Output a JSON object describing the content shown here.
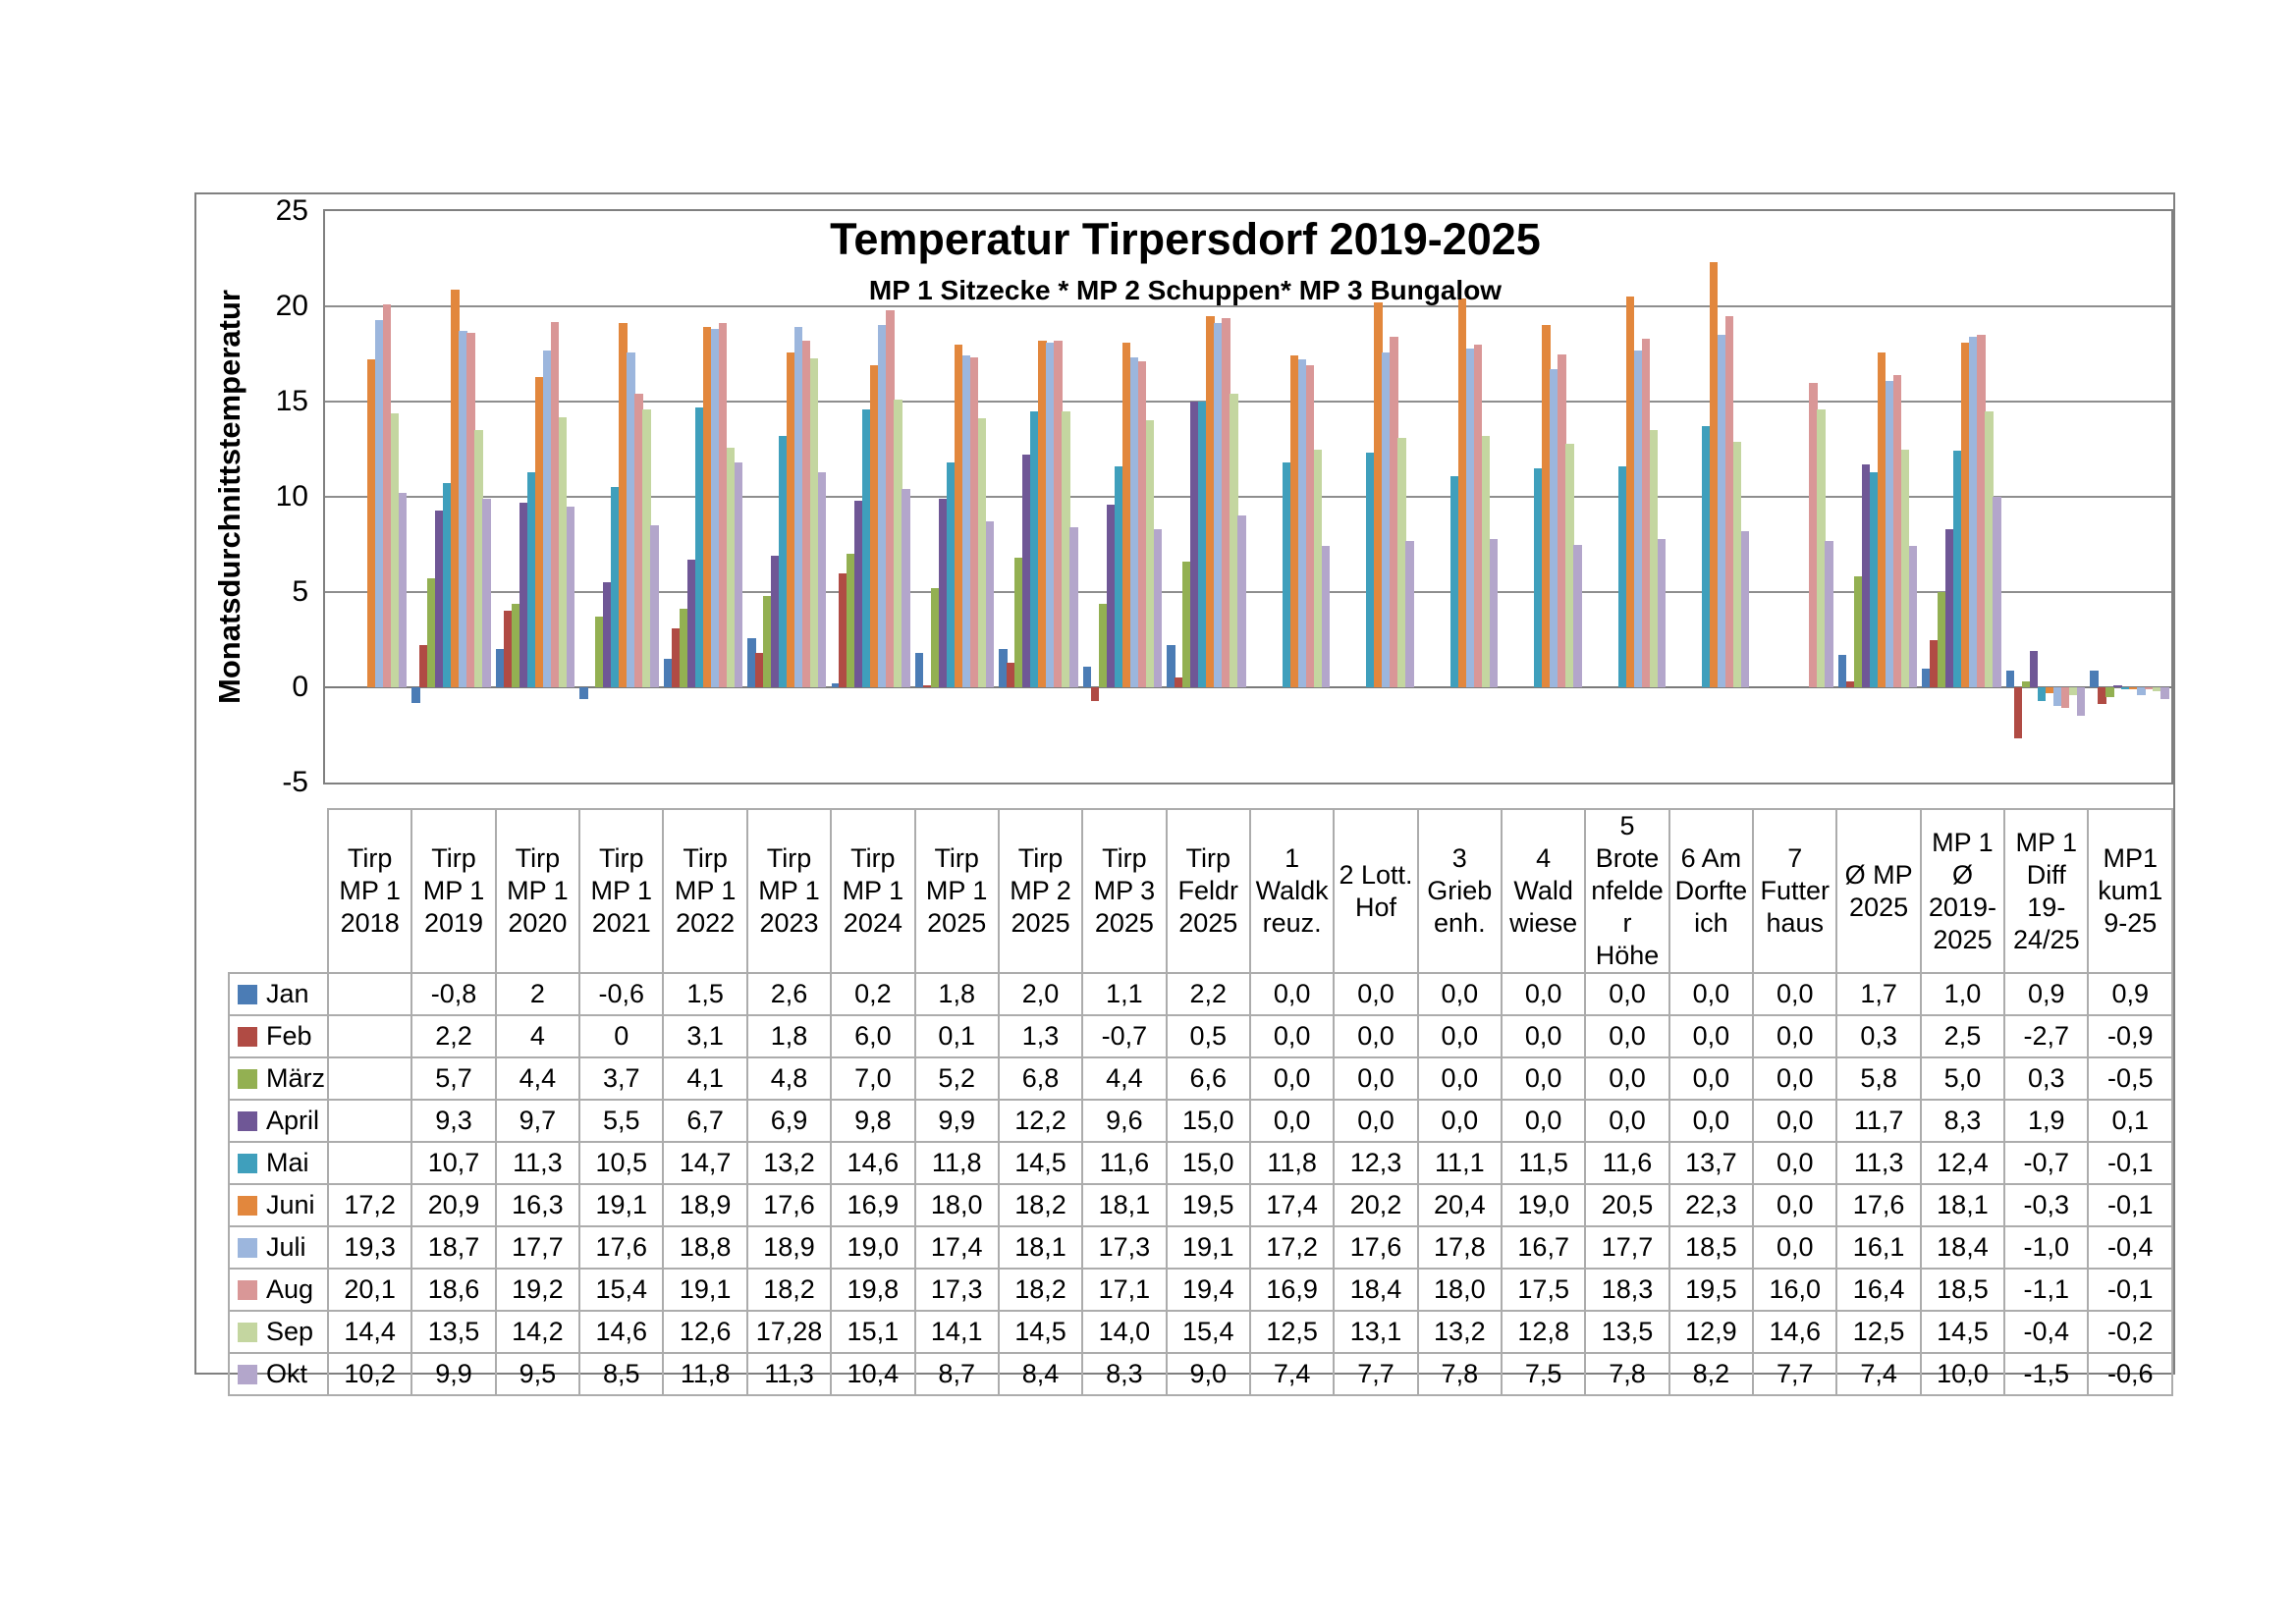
{
  "chart_data": {
    "type": "bar",
    "title": "Temperatur Tirpersdorf 2019-2025",
    "subtitle": "MP 1 Sitzecke * MP 2 Schuppen* MP 3 Bungalow",
    "ylabel": "Monatsdurchnittstemperatur",
    "ylim": [
      -5,
      25
    ],
    "y_ticks": [
      25,
      20,
      15,
      10,
      5,
      0,
      -5
    ],
    "grid": "horizontal",
    "legend_position": "data-table-left",
    "categories": [
      "Tirp MP 1 2018",
      "Tirp MP 1 2019",
      "Tirp MP 1 2020",
      "Tirp MP 1 2021",
      "Tirp MP 1 2022",
      "Tirp MP 1 2023",
      "Tirp MP 1 2024",
      "Tirp MP 1 2025",
      "Tirp MP 2 2025",
      "Tirp MP 3 2025",
      "Tirp Feldr 2025",
      "1 Waldkreuz.",
      "2 Lott. Hof",
      "3 Griebenh.",
      "4 Waldwiese",
      "5 Brotenfelder Höhe",
      "6 Am Dorfteich",
      "7 Futterhaus",
      "Ø MP 2025",
      "MP 1 Ø 2019-2025",
      "MP 1 Diff 19-24/25",
      "MP1 kum19-25"
    ],
    "series": [
      {
        "name": "Jan",
        "color": "#4b7cb5",
        "values": [
          null,
          -0.8,
          2,
          -0.6,
          1.5,
          2.6,
          0.2,
          1.8,
          2.0,
          1.1,
          2.2,
          0,
          0,
          0,
          0,
          0,
          0,
          0,
          1.7,
          1.0,
          0.9,
          0.9
        ],
        "display": [
          "",
          "-0,8",
          "2",
          "-0,6",
          "1,5",
          "2,6",
          "0,2",
          "1,8",
          "2,0",
          "1,1",
          "2,2",
          "0,0",
          "0,0",
          "0,0",
          "0,0",
          "0,0",
          "0,0",
          "0,0",
          "1,7",
          "1,0",
          "0,9",
          "0,9"
        ]
      },
      {
        "name": "Feb",
        "color": "#b04b44",
        "values": [
          null,
          2.2,
          4,
          0,
          3.1,
          1.8,
          6.0,
          0.1,
          1.3,
          -0.7,
          0.5,
          0,
          0,
          0,
          0,
          0,
          0,
          0,
          0.3,
          2.5,
          -2.7,
          -0.9
        ],
        "display": [
          "",
          "2,2",
          "4",
          "0",
          "3,1",
          "1,8",
          "6,0",
          "0,1",
          "1,3",
          "-0,7",
          "0,5",
          "0,0",
          "0,0",
          "0,0",
          "0,0",
          "0,0",
          "0,0",
          "0,0",
          "0,3",
          "2,5",
          "-2,7",
          "-0,9"
        ]
      },
      {
        "name": "März",
        "color": "#93b052",
        "values": [
          null,
          5.7,
          4.4,
          3.7,
          4.1,
          4.8,
          7.0,
          5.2,
          6.8,
          4.4,
          6.6,
          0,
          0,
          0,
          0,
          0,
          0,
          0,
          5.8,
          5.0,
          0.3,
          -0.5
        ],
        "display": [
          "",
          "5,7",
          "4,4",
          "3,7",
          "4,1",
          "4,8",
          "7,0",
          "5,2",
          "6,8",
          "4,4",
          "6,6",
          "0,0",
          "0,0",
          "0,0",
          "0,0",
          "0,0",
          "0,0",
          "0,0",
          "5,8",
          "5,0",
          "0,3",
          "-0,5"
        ]
      },
      {
        "name": "April",
        "color": "#6f5796",
        "values": [
          null,
          9.3,
          9.7,
          5.5,
          6.7,
          6.9,
          9.8,
          9.9,
          12.2,
          9.6,
          15.0,
          0,
          0,
          0,
          0,
          0,
          0,
          0,
          11.7,
          8.3,
          1.9,
          0.1
        ],
        "display": [
          "",
          "9,3",
          "9,7",
          "5,5",
          "6,7",
          "6,9",
          "9,8",
          "9,9",
          "12,2",
          "9,6",
          "15,0",
          "0,0",
          "0,0",
          "0,0",
          "0,0",
          "0,0",
          "0,0",
          "0,0",
          "11,7",
          "8,3",
          "1,9",
          "0,1"
        ]
      },
      {
        "name": "Mai",
        "color": "#3f9fbc",
        "values": [
          null,
          10.7,
          11.3,
          10.5,
          14.7,
          13.2,
          14.6,
          11.8,
          14.5,
          11.6,
          15.0,
          11.8,
          12.3,
          11.1,
          11.5,
          11.6,
          13.7,
          0,
          11.3,
          12.4,
          -0.7,
          -0.1
        ],
        "display": [
          "",
          "10,7",
          "11,3",
          "10,5",
          "14,7",
          "13,2",
          "14,6",
          "11,8",
          "14,5",
          "11,6",
          "15,0",
          "11,8",
          "12,3",
          "11,1",
          "11,5",
          "11,6",
          "13,7",
          "0,0",
          "11,3",
          "12,4",
          "-0,7",
          "-0,1"
        ]
      },
      {
        "name": "Juni",
        "color": "#e2873d",
        "values": [
          17.2,
          20.9,
          16.3,
          19.1,
          18.9,
          17.6,
          16.9,
          18.0,
          18.2,
          18.1,
          19.5,
          17.4,
          20.2,
          20.4,
          19.0,
          20.5,
          22.3,
          0,
          17.6,
          18.1,
          -0.3,
          -0.1
        ],
        "display": [
          "17,2",
          "20,9",
          "16,3",
          "19,1",
          "18,9",
          "17,6",
          "16,9",
          "18,0",
          "18,2",
          "18,1",
          "19,5",
          "17,4",
          "20,2",
          "20,4",
          "19,0",
          "20,5",
          "22,3",
          "0,0",
          "17,6",
          "18,1",
          "-0,3",
          "-0,1"
        ]
      },
      {
        "name": "Juli",
        "color": "#9cb6dd",
        "values": [
          19.3,
          18.7,
          17.7,
          17.6,
          18.8,
          18.9,
          19.0,
          17.4,
          18.1,
          17.3,
          19.1,
          17.2,
          17.6,
          17.8,
          16.7,
          17.7,
          18.5,
          0,
          16.1,
          18.4,
          -1.0,
          -0.4
        ],
        "display": [
          "19,3",
          "18,7",
          "17,7",
          "17,6",
          "18,8",
          "18,9",
          "19,0",
          "17,4",
          "18,1",
          "17,3",
          "19,1",
          "17,2",
          "17,6",
          "17,8",
          "16,7",
          "17,7",
          "18,5",
          "0,0",
          "16,1",
          "18,4",
          "-1,0",
          "-0,4"
        ]
      },
      {
        "name": "Aug",
        "color": "#d99797",
        "values": [
          20.1,
          18.6,
          19.2,
          15.4,
          19.1,
          18.2,
          19.8,
          17.3,
          18.2,
          17.1,
          19.4,
          16.9,
          18.4,
          18.0,
          17.5,
          18.3,
          19.5,
          16.0,
          16.4,
          18.5,
          -1.1,
          -0.1
        ],
        "display": [
          "20,1",
          "18,6",
          "19,2",
          "15,4",
          "19,1",
          "18,2",
          "19,8",
          "17,3",
          "18,2",
          "17,1",
          "19,4",
          "16,9",
          "18,4",
          "18,0",
          "17,5",
          "18,3",
          "19,5",
          "16,0",
          "16,4",
          "18,5",
          "-1,1",
          "-0,1"
        ]
      },
      {
        "name": "Sep",
        "color": "#c4d6a0",
        "values": [
          14.4,
          13.5,
          14.2,
          14.6,
          12.6,
          17.28,
          15.1,
          14.1,
          14.5,
          14.0,
          15.4,
          12.5,
          13.1,
          13.2,
          12.8,
          13.5,
          12.9,
          14.6,
          12.5,
          14.5,
          -0.4,
          -0.2
        ],
        "display": [
          "14,4",
          "13,5",
          "14,2",
          "14,6",
          "12,6",
          "17,28",
          "15,1",
          "14,1",
          "14,5",
          "14,0",
          "15,4",
          "12,5",
          "13,1",
          "13,2",
          "12,8",
          "13,5",
          "12,9",
          "14,6",
          "12,5",
          "14,5",
          "-0,4",
          "-0,2"
        ]
      },
      {
        "name": "Okt",
        "color": "#b3a6cb",
        "values": [
          10.2,
          9.9,
          9.5,
          8.5,
          11.8,
          11.3,
          10.4,
          8.7,
          8.4,
          8.3,
          9.0,
          7.4,
          7.7,
          7.8,
          7.5,
          7.8,
          8.2,
          7.7,
          7.4,
          10.0,
          -1.5,
          -0.6
        ],
        "display": [
          "10,2",
          "9,9",
          "9,5",
          "8,5",
          "11,8",
          "11,3",
          "10,4",
          "8,7",
          "8,4",
          "8,3",
          "9,0",
          "7,4",
          "7,7",
          "7,8",
          "7,5",
          "7,8",
          "8,2",
          "7,7",
          "7,4",
          "10,0",
          "-1,5",
          "-0,6"
        ]
      }
    ]
  },
  "colors": {
    "frame_border": "#808080",
    "gridline": "#8e8e8e",
    "table_border": "#acacac",
    "background": "#ffffff"
  }
}
